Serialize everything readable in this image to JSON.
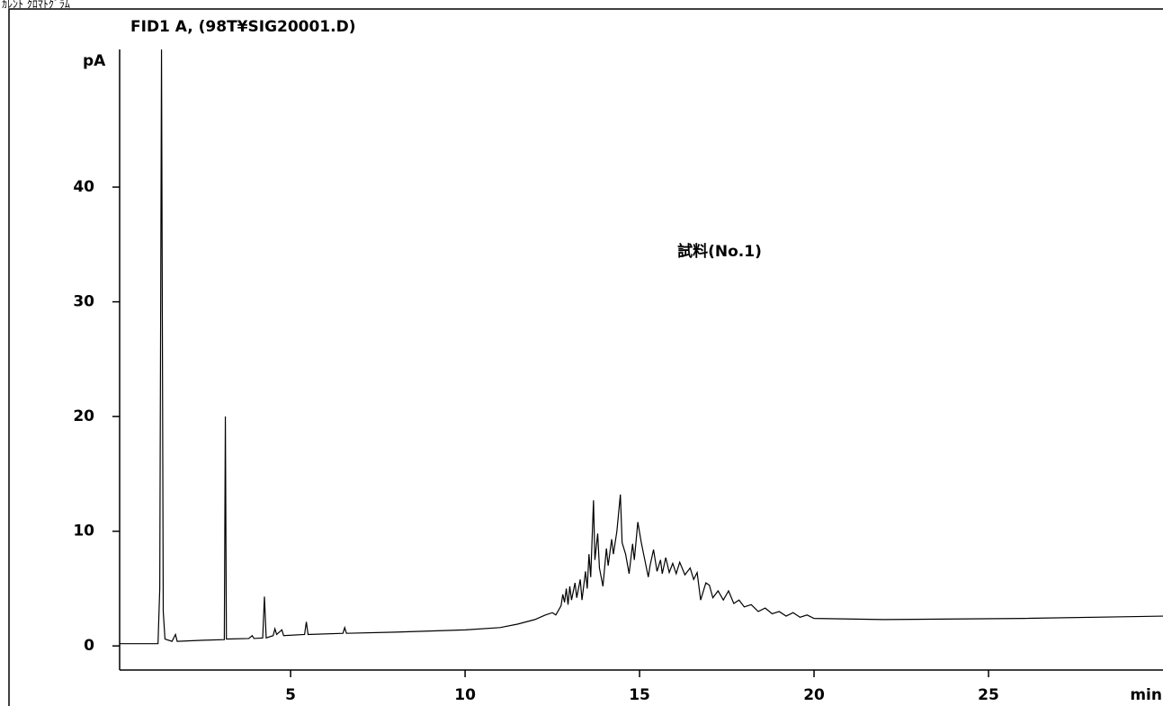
{
  "chart_data": {
    "type": "line",
    "window_title": "ｶﾚﾝﾄ ｸﾛﾏﾄｸﾞﾗﾑ",
    "title": "FID1 A, (98T¥SIG20001.D)",
    "annotation": "試料(No.1)",
    "x_label": "min",
    "y_label": "pA",
    "xlim": [
      0.1,
      30
    ],
    "ylim": [
      -2.1,
      52
    ],
    "xticks": [
      5,
      10,
      15,
      20,
      25
    ],
    "yticks": [
      0,
      10,
      20,
      30,
      40
    ],
    "color": "#000000",
    "series": [
      {
        "name": "FID1 A",
        "x": [
          0.1,
          1.2,
          1.25,
          1.3,
          1.35,
          1.4,
          1.6,
          1.7,
          1.75,
          2.5,
          3.1,
          3.13,
          3.16,
          3.8,
          3.9,
          3.95,
          4.2,
          4.25,
          4.3,
          4.5,
          4.55,
          4.6,
          4.75,
          4.8,
          5.4,
          5.45,
          5.5,
          6.5,
          6.55,
          6.6,
          8,
          10,
          11,
          11.5,
          12,
          12.3,
          12.5,
          12.6,
          12.75,
          12.8,
          12.85,
          12.9,
          12.95,
          13.0,
          13.05,
          13.15,
          13.2,
          13.3,
          13.35,
          13.45,
          13.5,
          13.55,
          13.6,
          13.68,
          13.72,
          13.8,
          13.85,
          13.95,
          14.05,
          14.1,
          14.2,
          14.25,
          14.35,
          14.45,
          14.5,
          14.6,
          14.7,
          14.8,
          14.85,
          14.95,
          15.05,
          15.15,
          15.25,
          15.3,
          15.4,
          15.5,
          15.6,
          15.65,
          15.75,
          15.85,
          15.95,
          16.05,
          16.15,
          16.3,
          16.45,
          16.55,
          16.65,
          16.75,
          16.9,
          17.0,
          17.1,
          17.25,
          17.4,
          17.55,
          17.7,
          17.85,
          18.0,
          18.2,
          18.4,
          18.6,
          18.8,
          19.0,
          19.2,
          19.4,
          19.6,
          19.8,
          20,
          22,
          26,
          30
        ],
        "values": [
          0.2,
          0.2,
          5,
          52,
          3,
          0.6,
          0.4,
          1.0,
          0.4,
          0.5,
          0.55,
          20,
          0.6,
          0.65,
          0.9,
          0.65,
          0.7,
          4.3,
          0.7,
          0.9,
          1.5,
          1.0,
          1.4,
          0.9,
          1.0,
          2.1,
          1.0,
          1.1,
          1.6,
          1.1,
          1.2,
          1.4,
          1.6,
          1.9,
          2.3,
          2.7,
          2.9,
          2.7,
          3.5,
          4.5,
          3.8,
          5.0,
          3.6,
          5.2,
          4.0,
          5.5,
          4.2,
          5.8,
          4.0,
          6.5,
          5.0,
          8.0,
          6.0,
          12.7,
          7.5,
          9.8,
          6.8,
          5.2,
          8.5,
          7.0,
          9.3,
          8.0,
          10.0,
          13.2,
          9.0,
          8.0,
          6.3,
          8.9,
          7.5,
          10.8,
          9.0,
          7.5,
          6.0,
          7.0,
          8.4,
          6.5,
          7.5,
          6.3,
          7.7,
          6.4,
          7.2,
          6.3,
          7.3,
          6.2,
          6.8,
          5.8,
          6.4,
          4.0,
          5.5,
          5.3,
          4.2,
          4.8,
          4.0,
          4.8,
          3.7,
          4.0,
          3.4,
          3.6,
          3.0,
          3.3,
          2.8,
          3.0,
          2.6,
          2.9,
          2.5,
          2.7,
          2.4,
          2.3,
          2.4,
          2.6
        ]
      }
    ]
  }
}
